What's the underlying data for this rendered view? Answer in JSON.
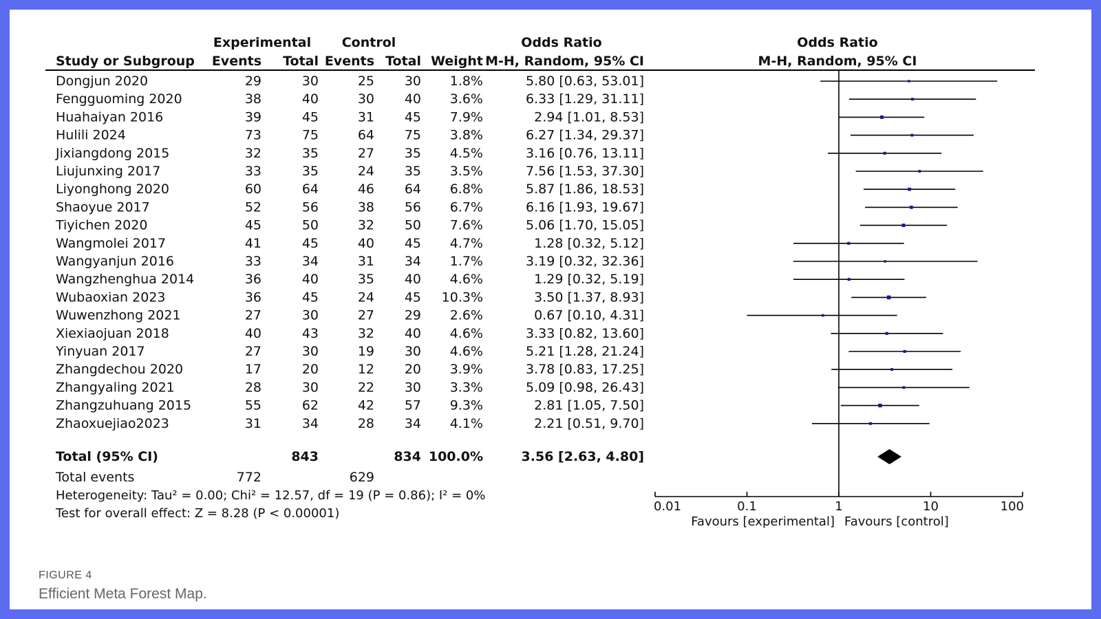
{
  "figure": {
    "label": "FIGURE 4",
    "caption": "Efficient Meta Forest Map."
  },
  "table": {
    "headers": {
      "study": "Study or Subgroup",
      "experimental": "Experimental",
      "control": "Control",
      "events": "Events",
      "total": "Total",
      "weight": "Weight",
      "or_group": "Odds Ratio",
      "or_method": "M-H, Random, 95% CI"
    },
    "total_row": {
      "label": "Total (95% CI)",
      "exp_total": "843",
      "ctrl_total": "834",
      "weight": "100.0%",
      "ci_text": "3.56 [2.63, 4.80]"
    },
    "total_events": {
      "label": "Total events",
      "exp": "772",
      "ctrl": "629"
    },
    "heterogeneity": "Heterogeneity: Tau² = 0.00; Chi² = 12.57, df = 19 (P = 0.86); I² = 0%",
    "overall_effect": "Test for overall effect: Z = 8.28 (P < 0.00001)"
  },
  "chart_data": {
    "type": "forest",
    "title": "Odds Ratio",
    "subtitle": "M-H, Random, 95% CI",
    "x_scale": "log",
    "xlim": [
      0.01,
      100
    ],
    "reference_line": 1,
    "ticks": [
      0.01,
      0.1,
      1,
      10,
      100
    ],
    "tick_labels": [
      "0.01",
      "0.1",
      "1",
      "10",
      "100"
    ],
    "xlabel_left": "Favours [experimental]",
    "xlabel_right": "Favours [control]",
    "studies": [
      {
        "name": "Dongjun 2020",
        "exp_events": 29,
        "exp_total": 30,
        "ctrl_events": 25,
        "ctrl_total": 30,
        "weight": "1.8%",
        "or": 5.8,
        "lower": 0.63,
        "upper": 53.01,
        "ci_text": "5.80 [0.63, 53.01]"
      },
      {
        "name": "Fengguoming 2020",
        "exp_events": 38,
        "exp_total": 40,
        "ctrl_events": 30,
        "ctrl_total": 40,
        "weight": "3.6%",
        "or": 6.33,
        "lower": 1.29,
        "upper": 31.11,
        "ci_text": "6.33 [1.29, 31.11]"
      },
      {
        "name": "Huahaiyan 2016",
        "exp_events": 39,
        "exp_total": 45,
        "ctrl_events": 31,
        "ctrl_total": 45,
        "weight": "7.9%",
        "or": 2.94,
        "lower": 1.01,
        "upper": 8.53,
        "ci_text": "2.94 [1.01, 8.53]"
      },
      {
        "name": "Hulili 2024",
        "exp_events": 73,
        "exp_total": 75,
        "ctrl_events": 64,
        "ctrl_total": 75,
        "weight": "3.8%",
        "or": 6.27,
        "lower": 1.34,
        "upper": 29.37,
        "ci_text": "6.27 [1.34, 29.37]"
      },
      {
        "name": "Jixiangdong 2015",
        "exp_events": 32,
        "exp_total": 35,
        "ctrl_events": 27,
        "ctrl_total": 35,
        "weight": "4.5%",
        "or": 3.16,
        "lower": 0.76,
        "upper": 13.11,
        "ci_text": "3.16 [0.76, 13.11]"
      },
      {
        "name": "Liujunxing 2017",
        "exp_events": 33,
        "exp_total": 35,
        "ctrl_events": 24,
        "ctrl_total": 35,
        "weight": "3.5%",
        "or": 7.56,
        "lower": 1.53,
        "upper": 37.3,
        "ci_text": "7.56 [1.53, 37.30]"
      },
      {
        "name": "Liyonghong 2020",
        "exp_events": 60,
        "exp_total": 64,
        "ctrl_events": 46,
        "ctrl_total": 64,
        "weight": "6.8%",
        "or": 5.87,
        "lower": 1.86,
        "upper": 18.53,
        "ci_text": "5.87 [1.86, 18.53]"
      },
      {
        "name": "Shaoyue 2017",
        "exp_events": 52,
        "exp_total": 56,
        "ctrl_events": 38,
        "ctrl_total": 56,
        "weight": "6.7%",
        "or": 6.16,
        "lower": 1.93,
        "upper": 19.67,
        "ci_text": "6.16 [1.93, 19.67]"
      },
      {
        "name": "Tiyichen 2020",
        "exp_events": 45,
        "exp_total": 50,
        "ctrl_events": 32,
        "ctrl_total": 50,
        "weight": "7.6%",
        "or": 5.06,
        "lower": 1.7,
        "upper": 15.05,
        "ci_text": "5.06 [1.70, 15.05]"
      },
      {
        "name": "Wangmolei 2017",
        "exp_events": 41,
        "exp_total": 45,
        "ctrl_events": 40,
        "ctrl_total": 45,
        "weight": "4.7%",
        "or": 1.28,
        "lower": 0.32,
        "upper": 5.12,
        "ci_text": "1.28 [0.32, 5.12]"
      },
      {
        "name": "Wangyanjun 2016",
        "exp_events": 33,
        "exp_total": 34,
        "ctrl_events": 31,
        "ctrl_total": 34,
        "weight": "1.7%",
        "or": 3.19,
        "lower": 0.32,
        "upper": 32.36,
        "ci_text": "3.19 [0.32, 32.36]"
      },
      {
        "name": "Wangzhenghua 2014",
        "exp_events": 36,
        "exp_total": 40,
        "ctrl_events": 35,
        "ctrl_total": 40,
        "weight": "4.6%",
        "or": 1.29,
        "lower": 0.32,
        "upper": 5.19,
        "ci_text": "1.29 [0.32, 5.19]"
      },
      {
        "name": "Wubaoxian 2023",
        "exp_events": 36,
        "exp_total": 45,
        "ctrl_events": 24,
        "ctrl_total": 45,
        "weight": "10.3%",
        "or": 3.5,
        "lower": 1.37,
        "upper": 8.93,
        "ci_text": "3.50 [1.37, 8.93]"
      },
      {
        "name": "Wuwenzhong 2021",
        "exp_events": 27,
        "exp_total": 30,
        "ctrl_events": 27,
        "ctrl_total": 29,
        "weight": "2.6%",
        "or": 0.67,
        "lower": 0.1,
        "upper": 4.31,
        "ci_text": "0.67 [0.10, 4.31]"
      },
      {
        "name": "Xiexiaojuan 2018",
        "exp_events": 40,
        "exp_total": 43,
        "ctrl_events": 32,
        "ctrl_total": 40,
        "weight": "4.6%",
        "or": 3.33,
        "lower": 0.82,
        "upper": 13.6,
        "ci_text": "3.33 [0.82, 13.60]"
      },
      {
        "name": "Yinyuan 2017",
        "exp_events": 27,
        "exp_total": 30,
        "ctrl_events": 19,
        "ctrl_total": 30,
        "weight": "4.6%",
        "or": 5.21,
        "lower": 1.28,
        "upper": 21.24,
        "ci_text": "5.21 [1.28, 21.24]"
      },
      {
        "name": "Zhangdechou 2020",
        "exp_events": 17,
        "exp_total": 20,
        "ctrl_events": 12,
        "ctrl_total": 20,
        "weight": "3.9%",
        "or": 3.78,
        "lower": 0.83,
        "upper": 17.25,
        "ci_text": "3.78 [0.83, 17.25]"
      },
      {
        "name": "Zhangyaling 2021",
        "exp_events": 28,
        "exp_total": 30,
        "ctrl_events": 22,
        "ctrl_total": 30,
        "weight": "3.3%",
        "or": 5.09,
        "lower": 0.98,
        "upper": 26.43,
        "ci_text": "5.09 [0.98, 26.43]"
      },
      {
        "name": "Zhangzuhuang 2015",
        "exp_events": 55,
        "exp_total": 62,
        "ctrl_events": 42,
        "ctrl_total": 57,
        "weight": "9.3%",
        "or": 2.81,
        "lower": 1.05,
        "upper": 7.5,
        "ci_text": "2.81 [1.05, 7.50]"
      },
      {
        "name": "Zhaoxuejiao2023",
        "exp_events": 31,
        "exp_total": 34,
        "ctrl_events": 28,
        "ctrl_total": 34,
        "weight": "4.1%",
        "or": 2.21,
        "lower": 0.51,
        "upper": 9.7,
        "ci_text": "2.21 [0.51, 9.70]"
      }
    ],
    "pooled": {
      "or": 3.56,
      "lower": 2.63,
      "upper": 4.8
    }
  },
  "colors": {
    "frame": "#5b6cf0",
    "text": "#111111",
    "point": "#1a1a8c",
    "line": "#000000",
    "caption": "#666666"
  }
}
